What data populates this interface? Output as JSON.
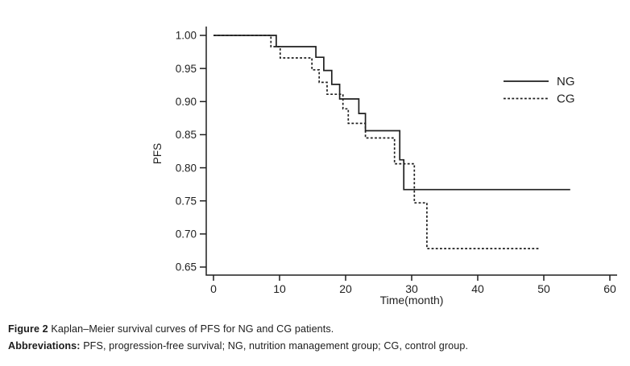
{
  "figure": {
    "caption": {
      "label": "Figure 2",
      "text": "Kaplan–Meier survival curves of PFS for NG and CG patients."
    },
    "abbreviations": {
      "label": "Abbreviations:",
      "text": "PFS, progression-free survival; NG, nutrition management group; CG, control group."
    }
  },
  "chart_data": {
    "type": "line",
    "chart_kind": "kaplan_meier_step",
    "title": "",
    "xlabel": "Time(month)",
    "ylabel": "PFS",
    "xlim": [
      0,
      60
    ],
    "ylim": [
      0.65,
      1.0
    ],
    "x_ticks": [
      0,
      10,
      20,
      30,
      40,
      50,
      60
    ],
    "y_ticks": [
      1.0,
      0.95,
      0.9,
      0.85,
      0.8,
      0.75,
      0.7,
      0.65
    ],
    "y_tick_decimals": 2,
    "grid": false,
    "ink_color": "#1f1f1f",
    "legend": {
      "position": "inside-right-top",
      "entries": [
        {
          "label": "NG",
          "line_style": "solid"
        },
        {
          "label": "CG",
          "line_style": "dashed"
        }
      ]
    },
    "series": [
      {
        "name": "NG",
        "line_style": "solid",
        "steps": [
          [
            0,
            1.0
          ],
          [
            9.5,
            0.983
          ],
          [
            15.5,
            0.967
          ],
          [
            16.7,
            0.947
          ],
          [
            17.9,
            0.926
          ],
          [
            19.1,
            0.904
          ],
          [
            22.0,
            0.882
          ],
          [
            23.0,
            0.856
          ],
          [
            28.2,
            0.812
          ],
          [
            28.8,
            0.767
          ]
        ],
        "end_time": 54.0
      },
      {
        "name": "CG",
        "line_style": "dashed",
        "steps": [
          [
            0,
            1.0
          ],
          [
            8.7,
            0.983
          ],
          [
            10.1,
            0.966
          ],
          [
            14.9,
            0.948
          ],
          [
            16.0,
            0.929
          ],
          [
            17.2,
            0.911
          ],
          [
            19.6,
            0.889
          ],
          [
            20.4,
            0.867
          ],
          [
            23.0,
            0.845
          ],
          [
            27.4,
            0.806
          ],
          [
            30.4,
            0.747
          ],
          [
            32.3,
            0.678
          ]
        ],
        "end_time": 49.4
      }
    ]
  }
}
